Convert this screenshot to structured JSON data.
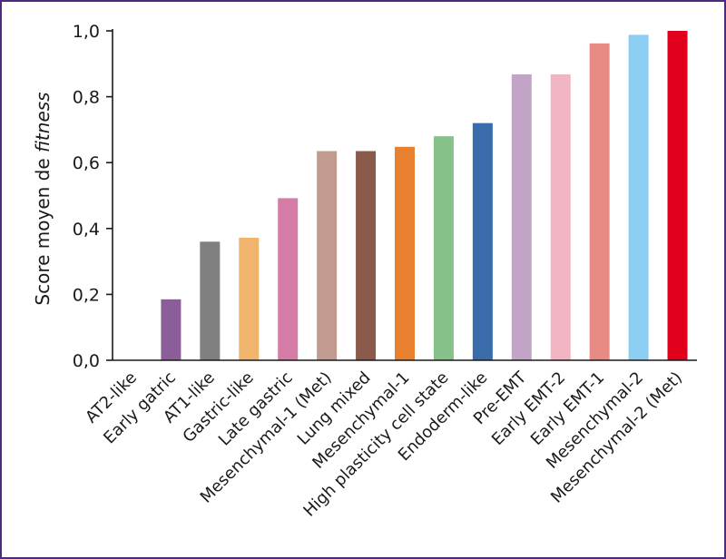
{
  "chart_data": {
    "type": "bar",
    "ylabel_prefix": "Score moyen de ",
    "ylabel_italic": "fitness",
    "xlabel": "",
    "ylim": [
      0,
      1.0
    ],
    "yticks": [
      "0,0",
      "0,2",
      "0,4",
      "0,6",
      "0,8",
      "1,0"
    ],
    "grid": false,
    "categories": [
      "AT2-like",
      "Early gatric",
      "AT1-like",
      "Gastric-like",
      "Late gastric",
      "Mesenchymal-1 (Met)",
      "Lung mixed",
      "Mesenchymal-1",
      "High plasticity cell state",
      "Endoderm-like",
      "Pre-EMT",
      "Early EMT-2",
      "Early EMT-1",
      "Mesenchymal-2",
      "Mesenchymal-2 (Met)"
    ],
    "values": [
      0.0,
      0.185,
      0.36,
      0.372,
      0.492,
      0.635,
      0.635,
      0.648,
      0.68,
      0.72,
      0.868,
      0.868,
      0.962,
      0.988,
      1.0
    ],
    "colors": [
      "#ffffff",
      "#8b5e9a",
      "#808080",
      "#f0b46c",
      "#d47ca5",
      "#c19b8e",
      "#8a5a4b",
      "#e9802f",
      "#86c18a",
      "#3a6cab",
      "#c2a4c6",
      "#f1b4c3",
      "#e88b84",
      "#8ccdf2",
      "#e0001b"
    ]
  }
}
